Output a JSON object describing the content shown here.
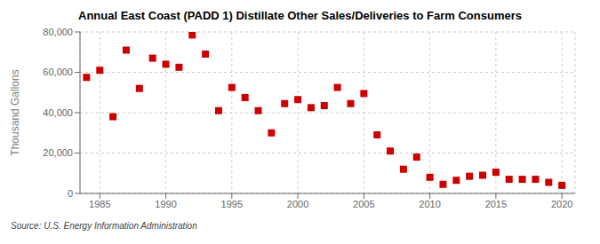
{
  "chart_data": {
    "type": "scatter",
    "title": "Annual East Coast (PADD 1) Distillate Other Sales/Deliveries to Farm Consumers",
    "ylabel": "Thousand Gallons",
    "source": "Source: U.S. Energy Information Administration",
    "color": "#cc0000",
    "marker": "square",
    "grid": true,
    "x": [
      1984,
      1985,
      1986,
      1987,
      1988,
      1989,
      1990,
      1991,
      1992,
      1993,
      1994,
      1995,
      1996,
      1997,
      1998,
      1999,
      2000,
      2001,
      2002,
      2003,
      2004,
      2005,
      2006,
      2007,
      2008,
      2009,
      2010,
      2011,
      2012,
      2013,
      2014,
      2015,
      2016,
      2017,
      2018,
      2019,
      2020
    ],
    "values": [
      57500,
      61000,
      38000,
      71000,
      52000,
      67000,
      64000,
      62500,
      78500,
      69000,
      41000,
      52500,
      47500,
      41000,
      30000,
      44500,
      46500,
      42500,
      43500,
      52500,
      44500,
      49500,
      29000,
      21000,
      12000,
      18000,
      8000,
      4500,
      6500,
      8500,
      9000,
      10500,
      7000,
      7000,
      7000,
      5500,
      4000
    ],
    "xlim": [
      1983.5,
      2021
    ],
    "ylim": [
      0,
      80000
    ],
    "xticks": [
      1985,
      1990,
      1995,
      2000,
      2005,
      2010,
      2015,
      2020
    ],
    "yticks": [
      0,
      {
        "value": 20000,
        "label": "20,000"
      },
      {
        "value": 40000,
        "label": "40,000"
      },
      {
        "value": 60000,
        "label": "60,000"
      },
      {
        "value": 80000,
        "label": "80,000"
      }
    ]
  }
}
